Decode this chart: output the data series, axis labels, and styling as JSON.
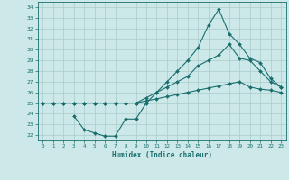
{
  "xlabel": "Humidex (Indice chaleur)",
  "bg_color": "#cce8e8",
  "line_color": "#1a6e6e",
  "grid_color": "#aacccc",
  "xlim": [
    -0.5,
    23.5
  ],
  "ylim": [
    21.5,
    34.5
  ],
  "xticks": [
    0,
    1,
    2,
    3,
    4,
    5,
    6,
    7,
    8,
    9,
    10,
    11,
    12,
    13,
    14,
    15,
    16,
    17,
    18,
    19,
    20,
    21,
    22,
    23
  ],
  "yticks": [
    22,
    23,
    24,
    25,
    26,
    27,
    28,
    29,
    30,
    31,
    32,
    33,
    34
  ],
  "line_upper_x": [
    0,
    1,
    2,
    3,
    4,
    5,
    6,
    7,
    8,
    9,
    10,
    11,
    12,
    13,
    14,
    15,
    16,
    17,
    18,
    19,
    20,
    21,
    22,
    23
  ],
  "line_upper_y": [
    25,
    25,
    25,
    25,
    25,
    25,
    25,
    25,
    25,
    25,
    25.5,
    26,
    26.5,
    27,
    27.5,
    28.5,
    29,
    29.5,
    30.5,
    29.2,
    29,
    28,
    27,
    26.5
  ],
  "line_lower_x": [
    0,
    1,
    2,
    3,
    4,
    5,
    6,
    7,
    8,
    9,
    10,
    11,
    12,
    13,
    14,
    15,
    16,
    17,
    18,
    19,
    20,
    21,
    22,
    23
  ],
  "line_lower_y": [
    25,
    25,
    25,
    25,
    25,
    25,
    25,
    25,
    25,
    25,
    25.2,
    25.4,
    25.6,
    25.8,
    26.0,
    26.2,
    26.4,
    26.6,
    26.8,
    27.0,
    26.5,
    26.3,
    26.2,
    26.0
  ],
  "line_peak_x": [
    3,
    4,
    5,
    6,
    7,
    8,
    9,
    10,
    11,
    12,
    13,
    14,
    15,
    16,
    17,
    18,
    19,
    20,
    21,
    22,
    23
  ],
  "line_peak_y": [
    23.8,
    22.5,
    22.2,
    21.9,
    21.9,
    23.5,
    23.5,
    25.0,
    26.0,
    27.0,
    28.0,
    29.0,
    30.2,
    32.3,
    33.8,
    31.5,
    30.5,
    29.2,
    28.8,
    27.3,
    26.5
  ]
}
